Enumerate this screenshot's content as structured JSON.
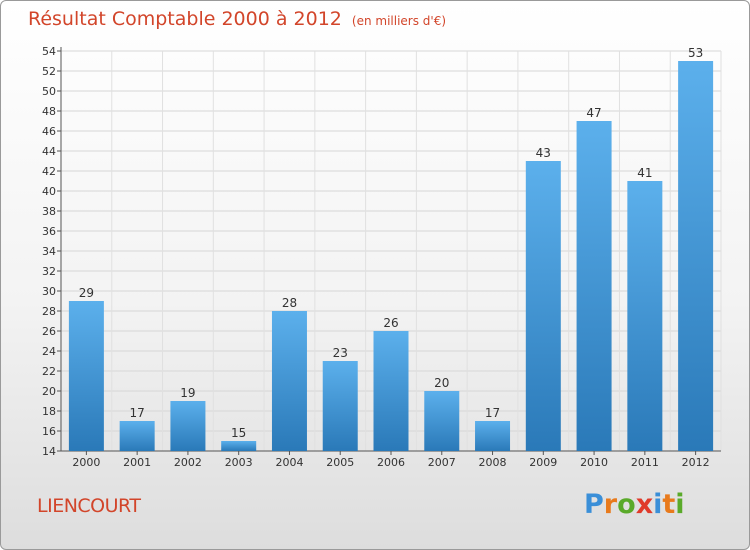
{
  "title": "Résultat Comptable 2000 à 2012",
  "subtitle": "(en milliers d'€)",
  "commune": "LIENCOURT",
  "logo": {
    "text": "Proxiti",
    "letters": [
      "P",
      "r",
      "o",
      "x",
      "i",
      "t",
      "i"
    ],
    "colors": [
      "#3a8fd8",
      "#e87a1c",
      "#5aaa2a",
      "#e03a2a",
      "#3a8fd8",
      "#e87a1c",
      "#5aaa2a"
    ]
  },
  "colors": {
    "bar_top": "#5cb0ec",
    "bar_bottom": "#2a79b8",
    "title": "#d2452a"
  },
  "chart_data": {
    "type": "bar",
    "title": "Résultat Comptable 2000 à 2012",
    "subtitle": "(en milliers d'€)",
    "categories": [
      "2000",
      "2001",
      "2002",
      "2003",
      "2004",
      "2005",
      "2006",
      "2007",
      "2008",
      "2009",
      "2010",
      "2011",
      "2012"
    ],
    "values": [
      29,
      17,
      19,
      15,
      28,
      23,
      26,
      20,
      17,
      43,
      47,
      41,
      53
    ],
    "ylim": [
      14,
      54
    ],
    "yticks": [
      14,
      16,
      18,
      20,
      22,
      24,
      26,
      28,
      30,
      32,
      34,
      36,
      38,
      40,
      42,
      44,
      46,
      48,
      50,
      52,
      54
    ],
    "grid": true,
    "xlabel": "",
    "ylabel": ""
  }
}
